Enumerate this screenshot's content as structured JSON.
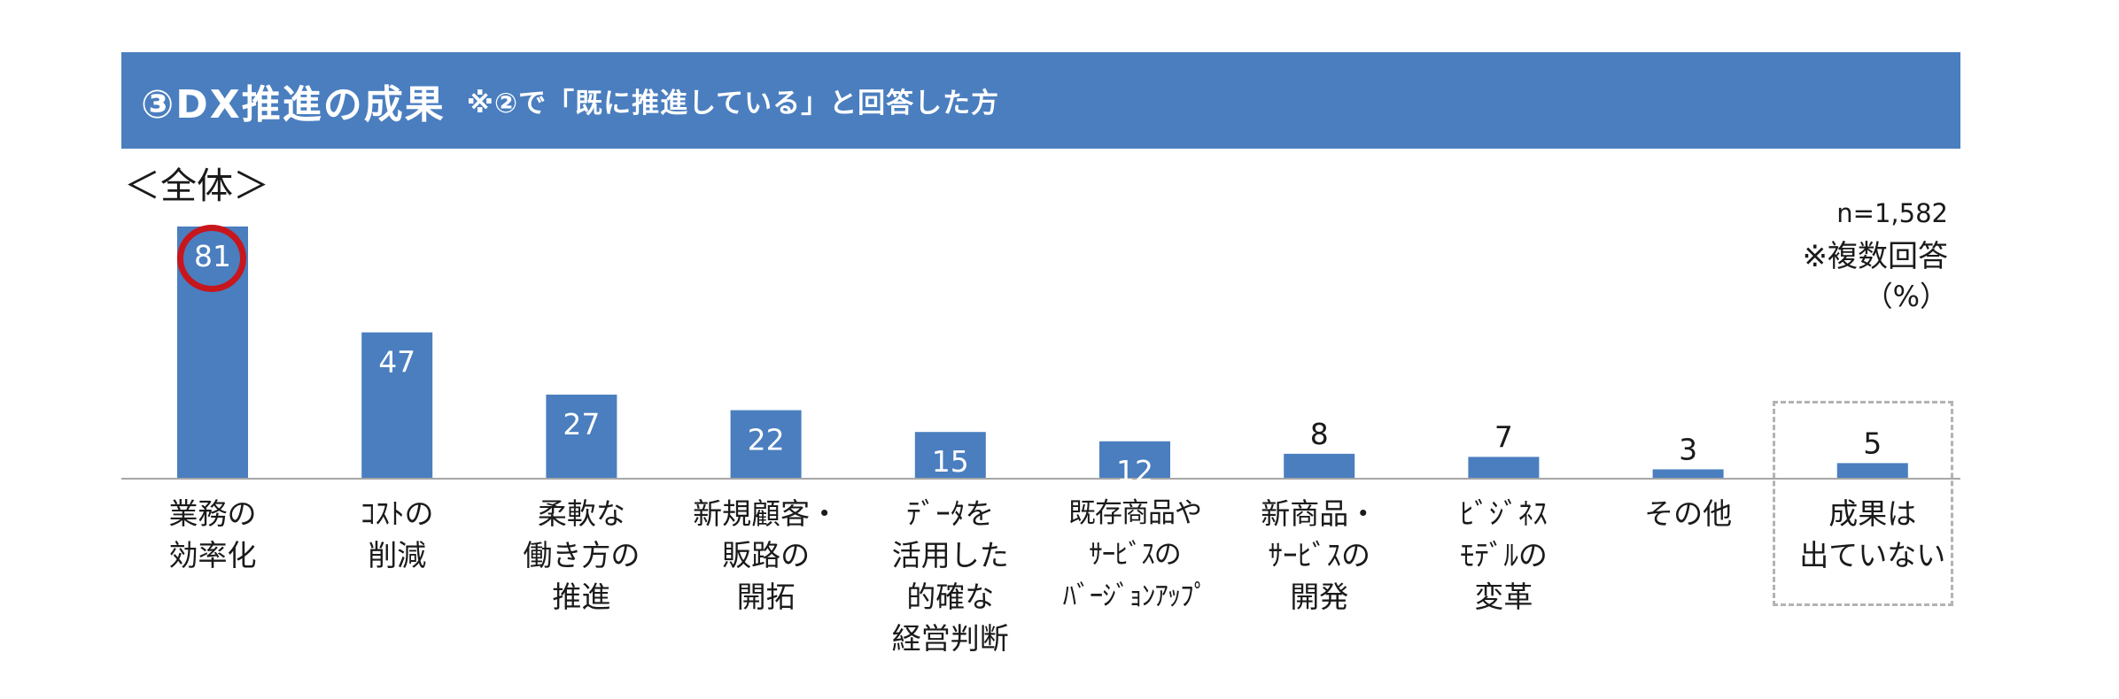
{
  "banner": {
    "title": "③DX推進の成果",
    "subtitle": "※②で「既に推進している」と回答した方"
  },
  "section_label": "＜全体＞",
  "notes": {
    "n": "n=1,582",
    "multi": "※複数回答",
    "unit": "（%）"
  },
  "colors": {
    "banner": "#4a7ebf",
    "bar": "#4a7ebf",
    "highlight_circle": "#c8161d",
    "dashed_box": "#b3b3b3"
  },
  "chart_data": {
    "type": "bar",
    "categories": [
      "業務の\n効率化",
      "ｺｽﾄの\n削減",
      "柔軟な\n働き方の\n推進",
      "新規顧客・\n販路の\n開拓",
      "ﾃﾞｰﾀを\n活用した\n的確な\n経営判断",
      "既存商品や\nｻｰﾋﾞｽの\nﾊﾞｰｼﾞｮﾝｱｯﾌﾟ",
      "新商品・\nｻｰﾋﾞｽの\n開発",
      "ﾋﾞｼﾞﾈｽ\nﾓﾃﾞﾙの\n変革",
      "その他",
      "成果は\n出ていない"
    ],
    "values": [
      81,
      47,
      27,
      22,
      15,
      12,
      8,
      7,
      3,
      5
    ],
    "value_labels": [
      "81",
      "47",
      "27",
      "22",
      "15",
      "12",
      "8",
      "7",
      "3",
      "5"
    ],
    "label_inside": [
      true,
      true,
      true,
      true,
      true,
      true,
      false,
      false,
      false,
      false
    ],
    "highlighted_index": 0,
    "dashed_box_index": 9,
    "ylim": [
      0,
      81
    ],
    "grid": false,
    "xlabel": "",
    "ylabel": ""
  }
}
